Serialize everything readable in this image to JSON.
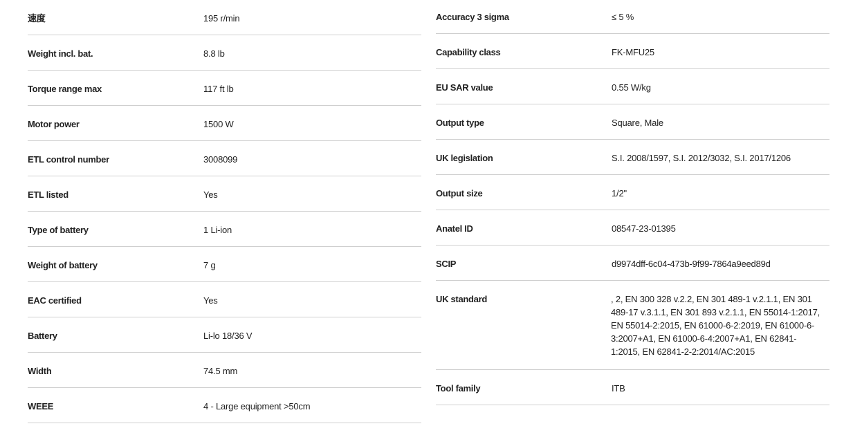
{
  "left_specs": [
    {
      "label": "速度",
      "value": "195 r/min"
    },
    {
      "label": "Weight incl. bat.",
      "value": "8.8 lb"
    },
    {
      "label": "Torque range max",
      "value": "117 ft lb"
    },
    {
      "label": "Motor power",
      "value": "1500 W"
    },
    {
      "label": "ETL control number",
      "value": "3008099"
    },
    {
      "label": "ETL listed",
      "value": "Yes"
    },
    {
      "label": "Type of battery",
      "value": "1 Li-ion"
    },
    {
      "label": "Weight of battery",
      "value": "7 g"
    },
    {
      "label": "EAC certified",
      "value": "Yes"
    },
    {
      "label": "Battery",
      "value": "Li-lo 18/36 V"
    },
    {
      "label": "Width",
      "value": "74.5 mm"
    },
    {
      "label": "WEEE",
      "value": "4 - Large equipment >50cm"
    }
  ],
  "right_specs": [
    {
      "label": "Accuracy 3 sigma",
      "value": "≤ 5 %"
    },
    {
      "label": "Capability class",
      "value": "FK-MFU25"
    },
    {
      "label": "EU SAR value",
      "value": "0.55 W/kg"
    },
    {
      "label": "Output type",
      "value": "Square, Male"
    },
    {
      "label": "UK legislation",
      "value": "S.I. 2008/1597, S.I. 2012/3032, S.I. 2017/1206"
    },
    {
      "label": "Output size",
      "value": "1/2\""
    },
    {
      "label": "Anatel ID",
      "value": "08547-23-01395"
    },
    {
      "label": "SCIP",
      "value": "d9974dff-6c04-473b-9f99-7864a9eed89d"
    },
    {
      "label": "UK standard",
      "value": ", 2, EN 300 328 v.2.2, EN 301 489-1 v.2.1.1, EN 301 489-17 v.3.1.1, EN 301 893 v.2.1.1, EN 55014-1:2017, EN 55014-2:2015, EN 61000-6-2:2019, EN 61000-6-3:2007+A1, EN 61000-6-4:2007+A1, EN 62841-1:2015, EN 62841-2-2:2014/AC:2015"
    },
    {
      "label": "Tool family",
      "value": "ITB"
    }
  ]
}
